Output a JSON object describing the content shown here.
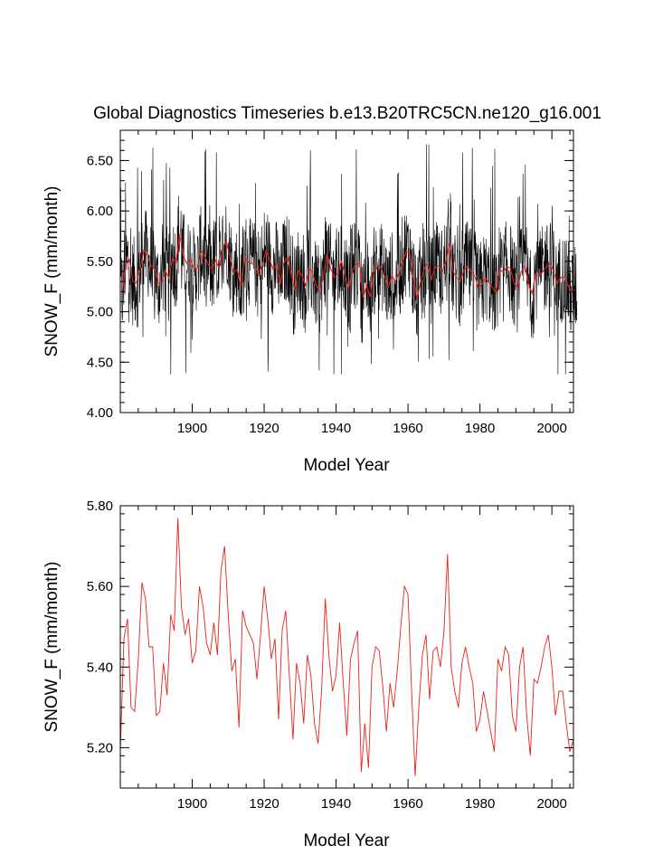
{
  "figure": {
    "title": "Global Diagnostics Timeseries b.e13.B20TRC5CN.ne120_g16.001"
  },
  "chart_data": [
    {
      "type": "line",
      "xlabel": "Model Year",
      "ylabel": "SNOW_F (mm/month)",
      "xlim": [
        1880,
        2006
      ],
      "ylim": [
        4.0,
        6.8
      ],
      "x_ticks": [
        "1900",
        "1920",
        "1940",
        "1960",
        "1980",
        "2000"
      ],
      "y_ticks": [
        "4.00",
        "4.50",
        "5.00",
        "5.50",
        "6.00",
        "6.50"
      ],
      "series": [
        {
          "color": "#000000",
          "note_values": "monthly values, 1880-2005; dense black trace, roughly 4.4-6.66 mm/month"
        },
        {
          "color": "#e8221b",
          "values_ref": "annual"
        }
      ]
    },
    {
      "type": "line",
      "xlabel": "Model Year",
      "ylabel": "SNOW_F (mm/month)",
      "xlim": [
        1880,
        2006
      ],
      "ylim": [
        5.1,
        5.8
      ],
      "x_ticks": [
        "1900",
        "1920",
        "1940",
        "1960",
        "1980",
        "2000"
      ],
      "y_ticks": [
        "5.20",
        "5.40",
        "5.60",
        "5.80"
      ],
      "series": [
        {
          "color": "#e8221b",
          "x_start": 1880,
          "values": [
            5.19,
            5.47,
            5.52,
            5.3,
            5.29,
            5.42,
            5.61,
            5.57,
            5.45,
            5.45,
            5.28,
            5.29,
            5.41,
            5.33,
            5.53,
            5.49,
            5.77,
            5.55,
            5.48,
            5.52,
            5.41,
            5.44,
            5.6,
            5.55,
            5.46,
            5.43,
            5.51,
            5.43,
            5.64,
            5.7,
            5.53,
            5.39,
            5.42,
            5.25,
            5.54,
            5.5,
            5.48,
            5.46,
            5.37,
            5.48,
            5.6,
            5.52,
            5.42,
            5.47,
            5.27,
            5.49,
            5.54,
            5.38,
            5.22,
            5.41,
            5.36,
            5.26,
            5.43,
            5.38,
            5.26,
            5.21,
            5.35,
            5.57,
            5.43,
            5.34,
            5.38,
            5.51,
            5.36,
            5.23,
            5.42,
            5.46,
            5.49,
            5.14,
            5.26,
            5.15,
            5.4,
            5.45,
            5.44,
            5.35,
            5.24,
            5.36,
            5.3,
            5.39,
            5.5,
            5.6,
            5.58,
            5.34,
            5.13,
            5.3,
            5.43,
            5.48,
            5.32,
            5.44,
            5.45,
            5.4,
            5.49,
            5.68,
            5.4,
            5.34,
            5.3,
            5.41,
            5.45,
            5.4,
            5.36,
            5.24,
            5.27,
            5.34,
            5.29,
            5.24,
            5.19,
            5.42,
            5.39,
            5.45,
            5.43,
            5.28,
            5.24,
            5.4,
            5.45,
            5.28,
            5.18,
            5.37,
            5.36,
            5.4,
            5.45,
            5.48,
            5.4,
            5.28,
            5.34,
            5.34,
            5.26,
            5.19,
            5.22
          ]
        }
      ]
    }
  ]
}
